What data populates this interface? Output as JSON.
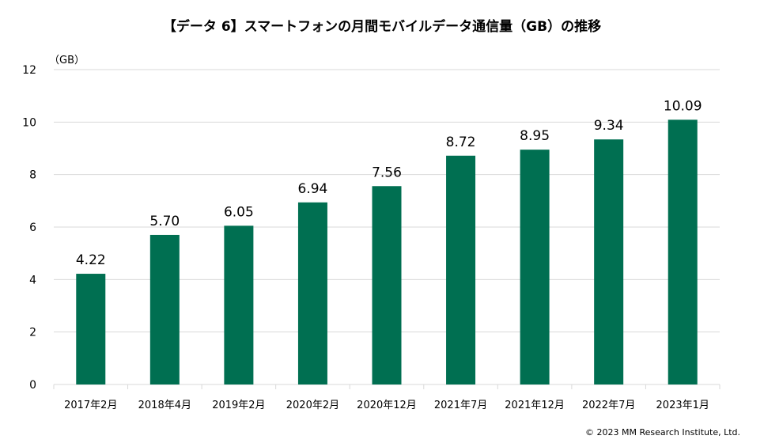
{
  "chart_data": {
    "type": "bar",
    "title": "【データ 6】スマートフォンの月間モバイルデータ通信量（GB）の推移",
    "ylabel": "（GB）",
    "xlabel": "",
    "categories": [
      "2017年2月",
      "2018年4月",
      "2019年2月",
      "2020年2月",
      "2020年12月",
      "2021年7月",
      "2021年12月",
      "2022年7月",
      "2023年1月"
    ],
    "values": [
      4.22,
      5.7,
      6.05,
      6.94,
      7.56,
      8.72,
      8.95,
      9.34,
      10.09
    ],
    "data_labels": [
      "4.22",
      "5.70",
      "6.05",
      "6.94",
      "7.56",
      "8.72",
      "8.95",
      "9.34",
      "10.09"
    ],
    "ylim": [
      0,
      12
    ],
    "yticks": [
      0,
      2,
      4,
      6,
      8,
      10,
      12
    ],
    "grid": true,
    "legend": "none",
    "bar_color": "#006f51",
    "grid_color": "#d9d9d9"
  },
  "footer": {
    "copyright": "© 2023 MM Research Institute, Ltd."
  }
}
